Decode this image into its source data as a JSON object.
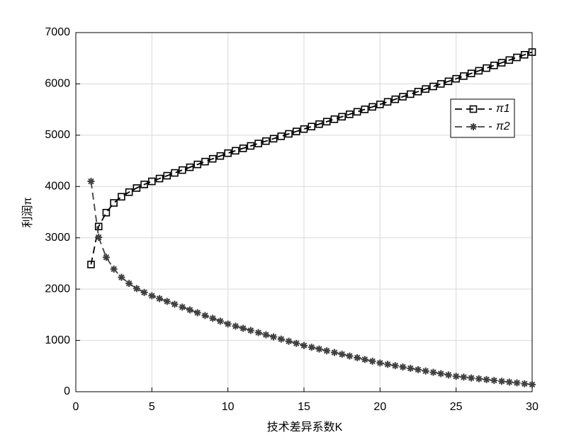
{
  "chart_data": {
    "type": "line",
    "xlabel": "技术差异系数K",
    "ylabel": "利润π",
    "x": [
      1,
      1.5,
      2,
      2.5,
      3,
      3.5,
      4,
      4.5,
      5,
      5.5,
      6,
      6.5,
      7,
      7.5,
      8,
      8.5,
      9,
      9.5,
      10,
      10.5,
      11,
      11.5,
      12,
      12.5,
      13,
      13.5,
      14,
      14.5,
      15,
      15.5,
      16,
      16.5,
      17,
      17.5,
      18,
      18.5,
      19,
      19.5,
      20,
      20.5,
      21,
      21.5,
      22,
      22.5,
      23,
      23.5,
      24,
      24.5,
      25,
      25.5,
      26,
      26.5,
      27,
      27.5,
      28,
      28.5,
      29,
      29.5,
      30
    ],
    "series": [
      {
        "name": "π1",
        "color": "#000000",
        "marker": "square",
        "values": [
          2480,
          3220,
          3490,
          3680,
          3800,
          3890,
          3970,
          4040,
          4100,
          4155,
          4210,
          4265,
          4320,
          4375,
          4430,
          4485,
          4540,
          4595,
          4650,
          4697,
          4744,
          4791,
          4838,
          4885,
          4932,
          4979,
          5026,
          5073,
          5120,
          5168,
          5216,
          5264,
          5312,
          5360,
          5408,
          5456,
          5504,
          5552,
          5600,
          5650,
          5700,
          5750,
          5800,
          5850,
          5900,
          5950,
          6000,
          6050,
          6100,
          6152,
          6204,
          6256,
          6308,
          6360,
          6412,
          6464,
          6516,
          6568,
          6620
        ]
      },
      {
        "name": "π2",
        "color": "#404040",
        "marker": "asterisk",
        "values": [
          4100,
          3010,
          2620,
          2390,
          2230,
          2110,
          2010,
          1935,
          1870,
          1815,
          1760,
          1705,
          1650,
          1595,
          1540,
          1485,
          1430,
          1375,
          1320,
          1278,
          1236,
          1194,
          1152,
          1110,
          1068,
          1026,
          984,
          942,
          900,
          866,
          832,
          798,
          764,
          730,
          696,
          662,
          628,
          594,
          560,
          534,
          508,
          482,
          456,
          430,
          404,
          378,
          352,
          326,
          300,
          284,
          268,
          252,
          236,
          220,
          204,
          188,
          172,
          156,
          140
        ]
      }
    ],
    "xlim": [
      0,
      30
    ],
    "xticks": [
      0,
      5,
      10,
      15,
      20,
      25,
      30
    ],
    "ylim": [
      0,
      7000
    ],
    "yticks": [
      0,
      1000,
      2000,
      3000,
      4000,
      5000,
      6000,
      7000
    ],
    "grid": true,
    "legend": "upper right"
  }
}
